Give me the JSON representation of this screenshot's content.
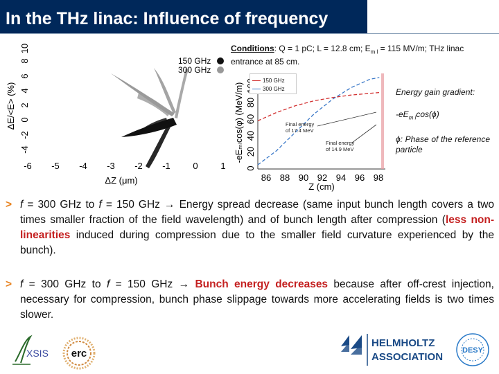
{
  "title": "In the THz linac: Influence of frequency",
  "conditions": {
    "label": "Conditions",
    "text": ": Q = 1 pC; L = 12.8 cm; E",
    "sub": "m l",
    "text2": " = 115 MV/m; THz linac entrance at 85 cm."
  },
  "left_chart": {
    "ylabel": "ΔE/<E> (%)",
    "xlabel": "ΔZ (μm)",
    "yticks": [
      "-4",
      "-2",
      "0",
      "2",
      "4",
      "6",
      "8",
      "10"
    ],
    "xticks": [
      "-6",
      "-5",
      "-4",
      "-3",
      "-2",
      "-1",
      "0",
      "1"
    ],
    "legend": [
      {
        "label": "150 GHz",
        "color": "#111111"
      },
      {
        "label": "300 GHz",
        "color": "#999999"
      }
    ]
  },
  "right_chart": {
    "ylabel": "-eEₘₗcos(φ) (MeV/m)",
    "xlabel": "Z (cm)",
    "yticks": [
      "0",
      "20",
      "40",
      "60",
      "80",
      "100"
    ],
    "xticks": [
      "86",
      "88",
      "90",
      "92",
      "94",
      "96",
      "98"
    ],
    "legend": [
      {
        "label": "150 GHz",
        "color": "#d23030"
      },
      {
        "label": "300 GHz",
        "color": "#3a78c8"
      }
    ],
    "annotation_1": [
      "Final energy",
      "of 17.4 MeV"
    ],
    "annotation_2": [
      "Final energy",
      "of 14.9 MeV"
    ]
  },
  "chart_data": [
    {
      "type": "scatter",
      "xlabel": "ΔZ (μm)",
      "ylabel": "ΔE/<E> (%)",
      "xlim": [
        -6,
        1
      ],
      "ylim": [
        -4,
        10
      ],
      "series": [
        {
          "name": "150 GHz",
          "x": [
            -2.5,
            -2.2,
            -1.8,
            -1.4,
            -1.0,
            -0.5
          ],
          "y": [
            0,
            -0.5,
            -1.0,
            -1.5,
            -1.8,
            -2.2
          ]
        },
        {
          "name": "300 GHz",
          "x": [
            -2.7,
            -2.3,
            -1.9,
            -1.5,
            -1.0,
            -0.6
          ],
          "y": [
            0.5,
            1.0,
            1.8,
            2.5,
            3.4,
            4.5
          ]
        }
      ]
    },
    {
      "type": "line",
      "xlabel": "Z (cm)",
      "ylabel": "-eEₘₗcos(φ) (MeV/m)",
      "xlim": [
        85,
        98.5
      ],
      "ylim": [
        0,
        115
      ],
      "series": [
        {
          "name": "150 GHz",
          "x": [
            85,
            87,
            89,
            91,
            93,
            95,
            97,
            98
          ],
          "y": [
            58,
            68,
            76,
            82,
            86,
            89,
            91,
            92
          ]
        },
        {
          "name": "300 GHz",
          "x": [
            85,
            87,
            89,
            91,
            93,
            95,
            97,
            98
          ],
          "y": [
            5,
            22,
            44,
            66,
            84,
            98,
            108,
            110
          ]
        }
      ]
    }
  ],
  "side_notes": {
    "gradient": "Energy gain gradient:",
    "formula": "-eE",
    "formula_sub": "m l",
    "formula_end": "cos(ϕ)",
    "phase": "ϕ: Phase of the reference particle"
  },
  "bullets": [
    {
      "marker": ">",
      "p1": "f",
      "p2": " = 300 GHz to ",
      "p3": "f",
      "p4": " = 150 GHz ",
      "arrow": "→",
      "p5": " Energy spread decrease (same input bunch length covers a two times smaller fraction of the field wavelength) and of bunch length after compression (",
      "highlight": "less non-linearities",
      "p6": " induced during compression due to the smaller field curvature experienced by the bunch)."
    },
    {
      "marker": ">",
      "p1": "f",
      "p2": " = 300 GHz to ",
      "p3": "f",
      "p4": " = 150 GHz ",
      "arrow": "→",
      "highlight": "Bunch energy decreases",
      "p5": " because after off-crest injection, necessary for compression, bunch phase slippage towards more accelerating fields is two times slower."
    }
  ],
  "logos": {
    "axsis": "XSIS",
    "erc": "erc",
    "helmholtz_1": "HELMHOLTZ",
    "helmholtz_2": "ASSOCIATION",
    "desy": "DESY"
  }
}
